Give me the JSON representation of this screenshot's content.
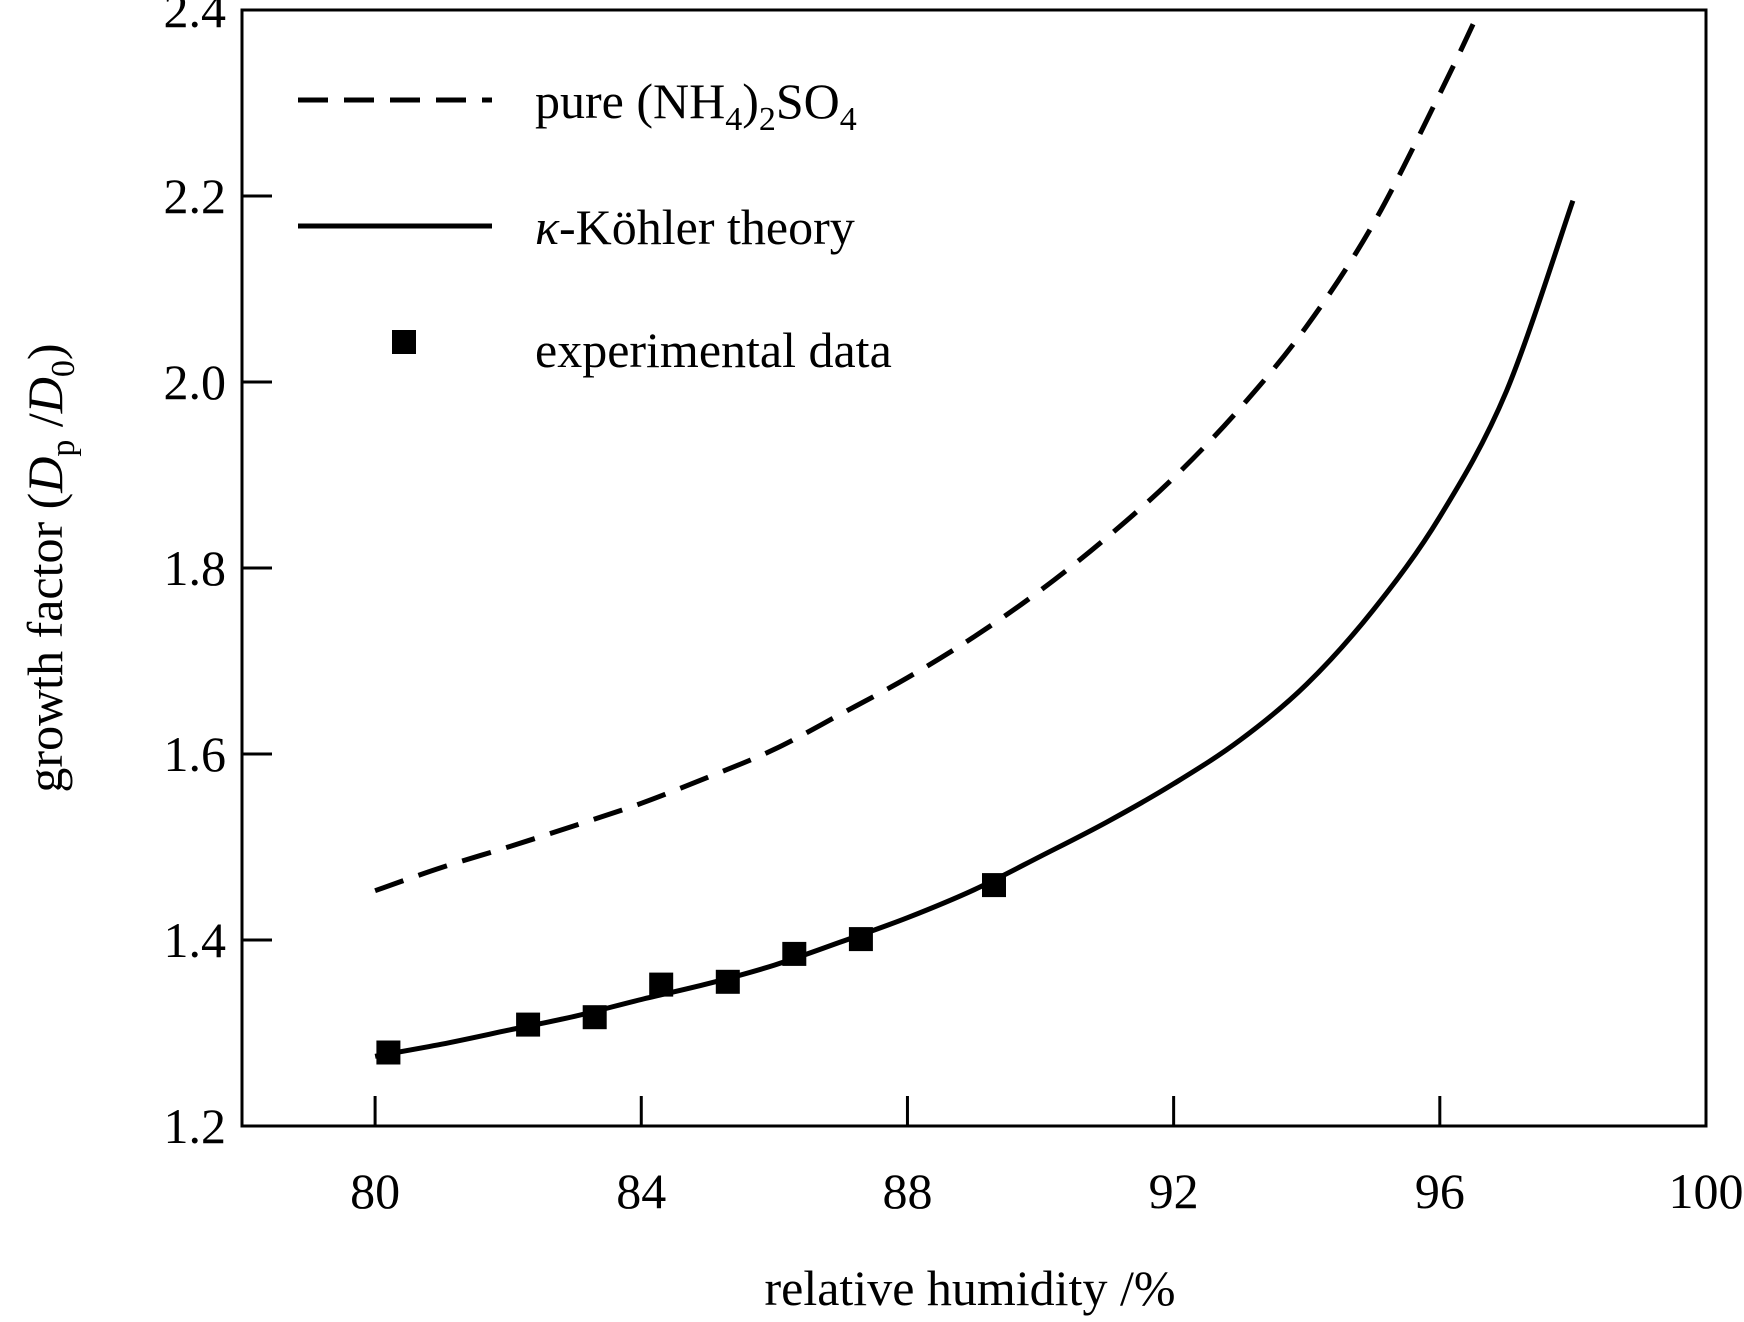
{
  "chart_data": {
    "type": "line",
    "title": "",
    "xlabel": "relative humidity /%",
    "ylabel": {
      "prefix": "growth factor (",
      "num_main": "D",
      "num_sub": "p",
      "slash": " /",
      "den_main": "D",
      "den_sub": "0",
      "suffix": ")"
    },
    "xlim": [
      78,
      100
    ],
    "ylim": [
      1.2,
      2.4
    ],
    "xticks": [
      80,
      84,
      88,
      92,
      96,
      100
    ],
    "yticks": [
      1.2,
      1.4,
      1.6,
      1.8,
      2.0,
      2.2,
      2.4
    ],
    "xtick_labels": [
      "80",
      "84",
      "88",
      "92",
      "96",
      "100"
    ],
    "ytick_labels": [
      "1.2",
      "1.4",
      "1.6",
      "1.8",
      "2.0",
      "2.2",
      "2.4"
    ],
    "legend": {
      "placement": "top-left",
      "items": [
        {
          "key": "pure",
          "style": "dashed",
          "label_parts": [
            "pure (NH",
            "4",
            ")",
            "2",
            "SO",
            "4"
          ]
        },
        {
          "key": "kohler",
          "style": "solid",
          "label_kappa": "κ",
          "label_rest": "-Köhler theory"
        },
        {
          "key": "exp",
          "style": "marker",
          "label": "experimental data"
        }
      ]
    },
    "series": [
      {
        "name": "pure (NH4)2SO4",
        "style": "dashed",
        "x": [
          80,
          81,
          82,
          83,
          84,
          85,
          86,
          87,
          88,
          89,
          90,
          91,
          92,
          93,
          94,
          95,
          96,
          96.6
        ],
        "y": [
          1.453,
          1.478,
          1.5,
          1.523,
          1.547,
          1.575,
          1.605,
          1.643,
          1.682,
          1.726,
          1.776,
          1.833,
          1.897,
          1.972,
          2.06,
          2.17,
          2.31,
          2.4
        ]
      },
      {
        "name": "κ-Köhler theory",
        "style": "solid",
        "x": [
          80,
          81,
          82,
          83,
          84,
          85,
          86,
          87,
          88,
          89,
          90,
          91,
          92,
          93,
          94,
          95,
          96,
          97,
          98
        ],
        "y": [
          1.275,
          1.288,
          1.303,
          1.318,
          1.336,
          1.353,
          1.373,
          1.398,
          1.424,
          1.454,
          1.49,
          1.527,
          1.568,
          1.615,
          1.675,
          1.755,
          1.855,
          1.99,
          2.195
        ]
      },
      {
        "name": "experimental data",
        "style": "marker",
        "x": [
          80.2,
          82.3,
          83.3,
          84.3,
          85.3,
          86.3,
          87.3,
          89.3
        ],
        "y": [
          1.279,
          1.309,
          1.317,
          1.352,
          1.355,
          1.385,
          1.401,
          1.459
        ]
      }
    ]
  }
}
